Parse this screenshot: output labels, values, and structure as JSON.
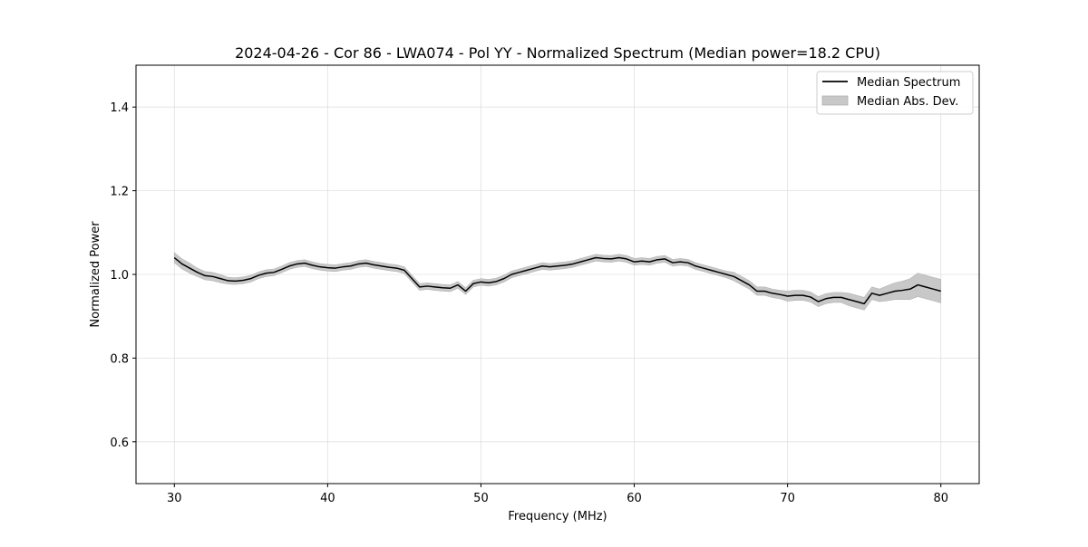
{
  "chart_data": {
    "type": "line",
    "title": "2024-04-26 - Cor 86 - LWA074 - Pol YY - Normalized Spectrum (Median power=18.2 CPU)",
    "xlabel": "Frequency (MHz)",
    "ylabel": "Normalized Power",
    "xlim": [
      27.5,
      82.5
    ],
    "ylim": [
      0.5,
      1.5
    ],
    "x_ticks": [
      30,
      40,
      50,
      60,
      70,
      80
    ],
    "y_ticks": [
      0.6,
      0.8,
      1.0,
      1.2,
      1.4
    ],
    "grid": true,
    "legend_position": "top-right",
    "legend": [
      "Median Spectrum",
      "Median Abs. Dev."
    ],
    "series": [
      {
        "name": "Median Spectrum",
        "kind": "line",
        "color": "#000000",
        "x": [
          30,
          30.5,
          31,
          31.5,
          32,
          32.5,
          33,
          33.5,
          34,
          34.5,
          35,
          35.5,
          36,
          36.5,
          37,
          37.5,
          38,
          38.5,
          39,
          39.5,
          40,
          40.5,
          41,
          41.5,
          42,
          42.5,
          43,
          43.5,
          44,
          44.5,
          45,
          45.5,
          46,
          46.5,
          47,
          47.5,
          48,
          48.5,
          49,
          49.5,
          50,
          50.5,
          51,
          51.5,
          52,
          52.5,
          53,
          53.5,
          54,
          54.5,
          55,
          55.5,
          56,
          56.5,
          57,
          57.5,
          58,
          58.5,
          59,
          59.5,
          60,
          60.5,
          61,
          61.5,
          62,
          62.5,
          63,
          63.5,
          64,
          64.5,
          65,
          65.5,
          66,
          66.5,
          67,
          67.5,
          68,
          68.5,
          69,
          69.5,
          70,
          70.5,
          71,
          71.5,
          72,
          72.5,
          73,
          73.5,
          74,
          74.5,
          75,
          75.5,
          76,
          76.5,
          77,
          77.5,
          78,
          78.5,
          79,
          79.5,
          80
        ],
        "y": [
          1.04,
          1.025,
          1.015,
          1.005,
          0.997,
          0.995,
          0.99,
          0.985,
          0.984,
          0.986,
          0.99,
          0.998,
          1.003,
          1.005,
          1.012,
          1.02,
          1.025,
          1.027,
          1.022,
          1.018,
          1.016,
          1.015,
          1.018,
          1.02,
          1.025,
          1.027,
          1.023,
          1.02,
          1.017,
          1.015,
          1.01,
          0.99,
          0.97,
          0.972,
          0.97,
          0.968,
          0.967,
          0.975,
          0.96,
          0.978,
          0.982,
          0.98,
          0.983,
          0.99,
          1.0,
          1.005,
          1.01,
          1.015,
          1.02,
          1.018,
          1.02,
          1.022,
          1.025,
          1.03,
          1.035,
          1.04,
          1.038,
          1.037,
          1.04,
          1.037,
          1.03,
          1.032,
          1.03,
          1.035,
          1.037,
          1.028,
          1.03,
          1.028,
          1.02,
          1.015,
          1.01,
          1.005,
          1.0,
          0.995,
          0.985,
          0.975,
          0.96,
          0.96,
          0.955,
          0.952,
          0.948,
          0.95,
          0.95,
          0.946,
          0.935,
          0.942,
          0.945,
          0.945,
          0.94,
          0.935,
          0.93,
          0.955,
          0.95,
          0.955,
          0.96,
          0.962,
          0.965,
          0.975,
          0.97,
          0.965,
          0.96
        ]
      },
      {
        "name": "Median Abs. Dev.",
        "kind": "band",
        "color": "#c8c8c8",
        "half_width": [
          0.012,
          0.012,
          0.012,
          0.01,
          0.01,
          0.01,
          0.01,
          0.008,
          0.008,
          0.008,
          0.008,
          0.008,
          0.008,
          0.008,
          0.008,
          0.008,
          0.008,
          0.008,
          0.008,
          0.008,
          0.008,
          0.008,
          0.008,
          0.008,
          0.008,
          0.008,
          0.008,
          0.008,
          0.008,
          0.008,
          0.008,
          0.008,
          0.008,
          0.008,
          0.008,
          0.008,
          0.008,
          0.008,
          0.008,
          0.008,
          0.008,
          0.008,
          0.008,
          0.008,
          0.008,
          0.008,
          0.008,
          0.008,
          0.008,
          0.008,
          0.008,
          0.008,
          0.008,
          0.008,
          0.008,
          0.008,
          0.008,
          0.008,
          0.008,
          0.008,
          0.008,
          0.008,
          0.008,
          0.008,
          0.008,
          0.008,
          0.008,
          0.008,
          0.008,
          0.008,
          0.008,
          0.008,
          0.008,
          0.01,
          0.01,
          0.01,
          0.01,
          0.01,
          0.01,
          0.01,
          0.012,
          0.012,
          0.012,
          0.012,
          0.012,
          0.012,
          0.012,
          0.012,
          0.015,
          0.015,
          0.015,
          0.015,
          0.015,
          0.018,
          0.02,
          0.022,
          0.025,
          0.028,
          0.028,
          0.028,
          0.028
        ]
      }
    ]
  }
}
